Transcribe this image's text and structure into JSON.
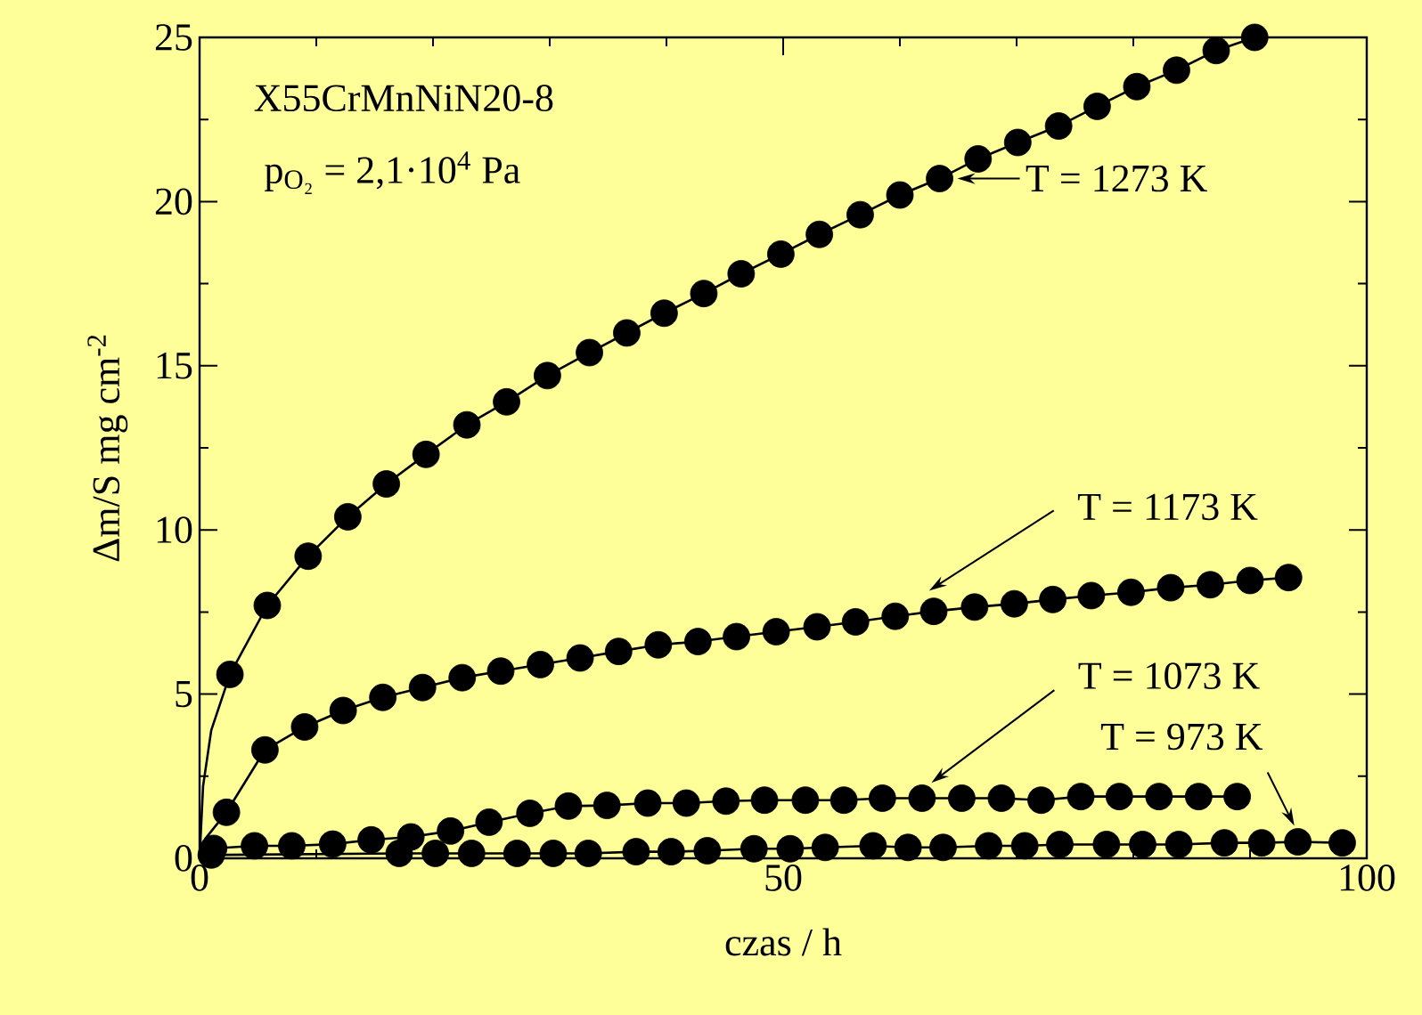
{
  "chart_data": {
    "type": "scatter",
    "xlabel": "czas    / h",
    "ylabel": "Δm/S    mg cm$^{-2}$",
    "xlim": [
      0,
      100
    ],
    "xticks": [
      0,
      50,
      100
    ],
    "ylim": [
      0,
      25
    ],
    "yticks": [
      0,
      5,
      10,
      15,
      20,
      25
    ],
    "grid": false,
    "series": [
      {
        "type": "line",
        "marker": "none",
        "color": "#000000",
        "x": [
          0,
          0.3,
          1.0,
          2.6,
          5.8,
          9.3,
          12.7,
          16.0,
          19.4,
          22.9,
          26.3,
          29.8,
          33.4,
          36.6,
          39.8,
          43.2,
          46.4,
          49.8,
          53.1,
          56.6,
          60.0,
          63.4,
          66.7,
          70.1,
          73.6,
          76.9,
          80.3,
          83.7,
          87.1,
          90.4
        ],
        "values": [
          0,
          2.2,
          3.9,
          5.6,
          7.7,
          9.2,
          10.4,
          11.4,
          12.3,
          13.2,
          13.9,
          14.7,
          15.4,
          16.0,
          16.6,
          17.2,
          17.8,
          18.4,
          19.0,
          19.6,
          20.2,
          20.7,
          21.3,
          21.8,
          22.3,
          22.9,
          23.5,
          24.0,
          24.6,
          25.0
        ]
      },
      {
        "marker": "circle",
        "color": "#000000",
        "x": [
          2.6,
          5.8,
          9.3,
          12.7,
          16.0,
          19.4,
          22.9,
          26.3,
          29.8,
          33.4,
          36.6,
          39.8,
          43.2,
          46.4,
          49.8,
          53.1,
          56.6,
          60.0,
          63.4,
          66.7,
          70.1,
          73.6,
          76.9,
          80.3,
          83.7,
          87.1,
          90.4
        ],
        "values": [
          5.6,
          7.7,
          9.2,
          10.4,
          11.4,
          12.3,
          13.2,
          13.9,
          14.7,
          15.4,
          16.0,
          16.6,
          17.2,
          17.8,
          18.4,
          19.0,
          19.6,
          20.2,
          20.7,
          21.3,
          21.8,
          22.3,
          22.9,
          23.5,
          24.0,
          24.6,
          25.0
        ]
      },
      {
        "type": "line",
        "marker": "none",
        "color": "#000000",
        "x": [
          0,
          0.5,
          2.3,
          5.6,
          9.0,
          12.3,
          15.7,
          19.1,
          22.5,
          25.8,
          29.2,
          32.6,
          35.9,
          39.3,
          42.7,
          46.0,
          49.4,
          52.9,
          56.2,
          59.6,
          62.9,
          66.4,
          69.8,
          73.1,
          76.4,
          79.8,
          83.2,
          86.6,
          90.0,
          93.3
        ],
        "values": [
          0,
          0.6,
          1.4,
          3.3,
          4.0,
          4.5,
          4.9,
          5.2,
          5.5,
          5.7,
          5.9,
          6.1,
          6.3,
          6.5,
          6.6,
          6.75,
          6.9,
          7.05,
          7.2,
          7.37,
          7.52,
          7.65,
          7.75,
          7.88,
          8.0,
          8.1,
          8.24,
          8.33,
          8.46,
          8.55
        ]
      },
      {
        "marker": "circle",
        "color": "#000000",
        "x": [
          2.3,
          5.6,
          9.0,
          12.3,
          15.7,
          19.1,
          22.5,
          25.8,
          29.2,
          32.6,
          35.9,
          39.3,
          42.7,
          46.0,
          49.4,
          52.9,
          56.2,
          59.6,
          62.9,
          66.4,
          69.8,
          73.1,
          76.4,
          79.8,
          83.2,
          86.6,
          90.0,
          93.3
        ],
        "values": [
          1.4,
          3.3,
          4.0,
          4.5,
          4.9,
          5.2,
          5.5,
          5.7,
          5.9,
          6.1,
          6.3,
          6.5,
          6.6,
          6.75,
          6.9,
          7.05,
          7.2,
          7.37,
          7.52,
          7.65,
          7.75,
          7.88,
          8.0,
          8.1,
          8.24,
          8.33,
          8.46,
          8.55
        ]
      },
      {
        "type": "line",
        "marker": "none",
        "color": "#000000",
        "x": [
          0,
          1.2,
          4.7,
          7.9,
          11.4,
          14.7,
          18.1,
          21.5,
          24.8,
          28.3,
          31.6,
          34.9,
          38.4,
          41.7,
          45.1,
          48.4,
          51.9,
          55.2,
          58.5,
          61.9,
          65.3,
          68.7,
          72.1,
          75.5,
          78.8,
          82.2,
          85.6,
          88.9
        ],
        "values": [
          0,
          0.3,
          0.38,
          0.38,
          0.43,
          0.56,
          0.65,
          0.83,
          1.1,
          1.37,
          1.59,
          1.61,
          1.68,
          1.68,
          1.74,
          1.77,
          1.77,
          1.77,
          1.83,
          1.83,
          1.83,
          1.83,
          1.77,
          1.88,
          1.88,
          1.88,
          1.88,
          1.88
        ]
      },
      {
        "marker": "circle",
        "color": "#000000",
        "x": [
          1.2,
          4.7,
          7.9,
          11.4,
          14.7,
          18.1,
          21.5,
          24.8,
          28.3,
          31.6,
          34.9,
          38.4,
          41.7,
          45.1,
          48.4,
          51.9,
          55.2,
          58.5,
          61.9,
          65.3,
          68.7,
          72.1,
          75.5,
          78.8,
          82.2,
          85.6,
          88.9
        ],
        "values": [
          0.3,
          0.38,
          0.38,
          0.43,
          0.56,
          0.65,
          0.83,
          1.1,
          1.37,
          1.59,
          1.61,
          1.68,
          1.68,
          1.74,
          1.77,
          1.77,
          1.77,
          1.83,
          1.83,
          1.83,
          1.83,
          1.77,
          1.88,
          1.88,
          1.88,
          1.88,
          1.88
        ]
      },
      {
        "type": "line",
        "marker": "none",
        "color": "#000000",
        "x": [
          0,
          1.0,
          17.1,
          20.2,
          23.3,
          27.2,
          30.3,
          33.3,
          37.4,
          40.4,
          43.5,
          47.5,
          50.6,
          53.6,
          57.7,
          60.7,
          63.7,
          67.6,
          70.7,
          73.7,
          77.7,
          80.8,
          83.9,
          87.8,
          91.0,
          94.1,
          97.9
        ],
        "values": [
          0,
          0.1,
          0.15,
          0.15,
          0.15,
          0.15,
          0.15,
          0.15,
          0.2,
          0.2,
          0.23,
          0.29,
          0.29,
          0.33,
          0.38,
          0.33,
          0.33,
          0.38,
          0.38,
          0.42,
          0.42,
          0.42,
          0.42,
          0.47,
          0.47,
          0.5,
          0.47
        ]
      },
      {
        "marker": "circle",
        "color": "#000000",
        "x": [
          1.0,
          17.1,
          20.2,
          23.3,
          27.2,
          30.3,
          33.3,
          37.4,
          40.4,
          43.5,
          47.5,
          50.6,
          53.6,
          57.7,
          60.7,
          63.7,
          67.6,
          70.7,
          73.7,
          77.7,
          80.8,
          83.9,
          87.8,
          91.0,
          94.1,
          97.9
        ],
        "values": [
          0.1,
          0.15,
          0.15,
          0.15,
          0.15,
          0.15,
          0.15,
          0.2,
          0.2,
          0.23,
          0.29,
          0.29,
          0.33,
          0.38,
          0.33,
          0.33,
          0.38,
          0.38,
          0.42,
          0.42,
          0.42,
          0.42,
          0.47,
          0.47,
          0.5,
          0.47
        ]
      }
    ],
    "annotations": [
      "X55CrMnNiN20-8",
      "p$_{O₂}$ = 2,1·10$^{4}$ Pa",
      {
        "text": "T = 1273 K",
        "x": 63.4,
        "y": 20.7
      },
      {
        "text": "T = 1173 K",
        "x": 62.5,
        "y": 8.15
      },
      {
        "text": "T = 1073 K",
        "x": 62.7,
        "y": 2.3
      },
      {
        "text": "T = 973 K",
        "x": 94.1,
        "y": 0.5
      }
    ]
  }
}
